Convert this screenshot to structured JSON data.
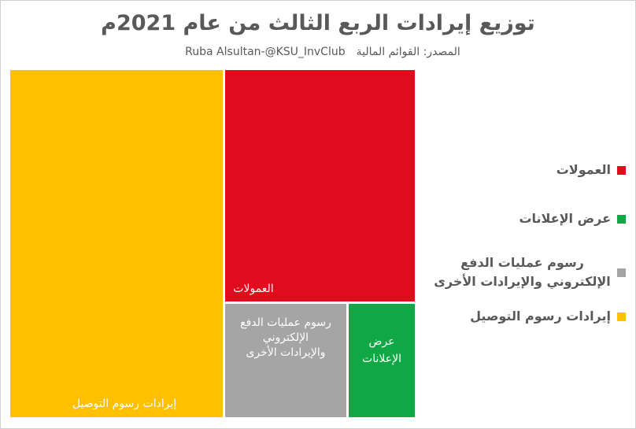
{
  "chart_data": {
    "type": "treemap",
    "title": "توزيع إيرادات الربع الثالث من عام 2021م",
    "subtitle_source": "المصدر: القوائم المالية",
    "subtitle_author": "Ruba Alsultan-@KSU_InvClub",
    "items": [
      {
        "name": "إيرادات رسوم التوصيل",
        "value": 52.6,
        "color": "#FFC000"
      },
      {
        "name": "العمولات",
        "value": 31.6,
        "color": "#E00B1C"
      },
      {
        "name": "رسوم عمليات الدفع الإلكتروني والإيرادات الأخرى",
        "value": 10.2,
        "color": "#A5A5A5"
      },
      {
        "name": "عرض الإعلانات",
        "value": 5.6,
        "color": "#10A847"
      }
    ],
    "legend": {
      "placement": "right",
      "entries": [
        {
          "name": "العمولات",
          "color": "#E00B1C"
        },
        {
          "name": "عرض الإعلانات",
          "color": "#10A847"
        },
        {
          "name": "رسوم عمليات الدفع الإلكتروني والإيرادات الأخرى",
          "color": "#A5A5A5"
        },
        {
          "name": "إيرادات رسوم التوصيل",
          "color": "#FFC000"
        }
      ]
    }
  }
}
